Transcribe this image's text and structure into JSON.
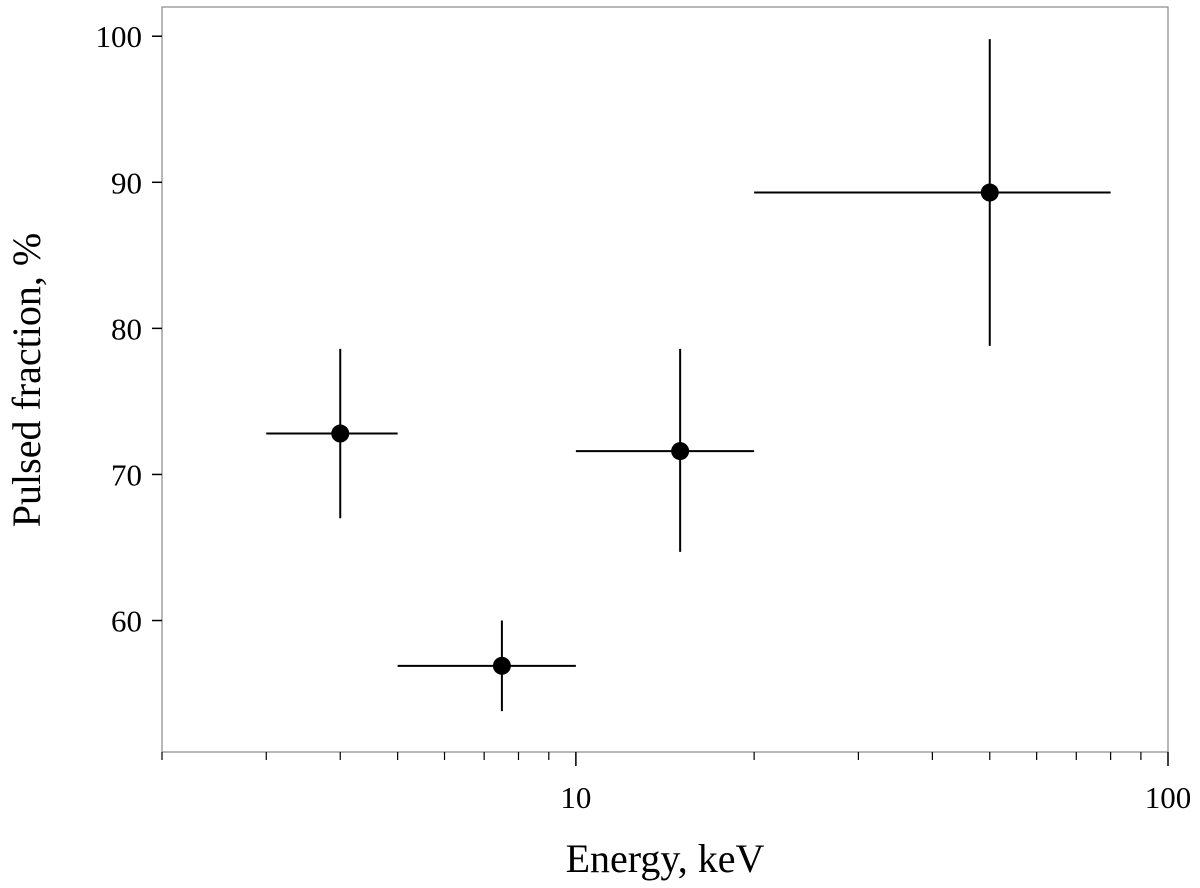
{
  "chart_data": {
    "type": "scatter",
    "title": "",
    "xlabel": "Energy, keV",
    "ylabel": "Pulsed fraction, %",
    "xscale": "log",
    "xlim": [
      2,
      100
    ],
    "ylim": [
      51,
      102
    ],
    "grid": false,
    "x_ticks": [
      10,
      100
    ],
    "x_tick_labels": [
      "10",
      "100"
    ],
    "y_ticks": [
      60,
      70,
      80,
      90,
      100
    ],
    "y_tick_labels": [
      "60",
      "70",
      "80",
      "90",
      "100"
    ],
    "marker_color": "#000000",
    "points": [
      {
        "x": 4.0,
        "x_lo": 3.0,
        "x_hi": 5.0,
        "y": 72.8,
        "y_lo": 67.0,
        "y_hi": 78.6
      },
      {
        "x": 7.5,
        "x_lo": 5.0,
        "x_hi": 10.0,
        "y": 56.9,
        "y_lo": 53.8,
        "y_hi": 60.0
      },
      {
        "x": 15.0,
        "x_lo": 10.0,
        "x_hi": 20.0,
        "y": 71.6,
        "y_lo": 64.7,
        "y_hi": 78.6
      },
      {
        "x": 50.0,
        "x_lo": 20.0,
        "x_hi": 80.0,
        "y": 89.3,
        "y_lo": 78.8,
        "y_hi": 99.8
      }
    ]
  }
}
